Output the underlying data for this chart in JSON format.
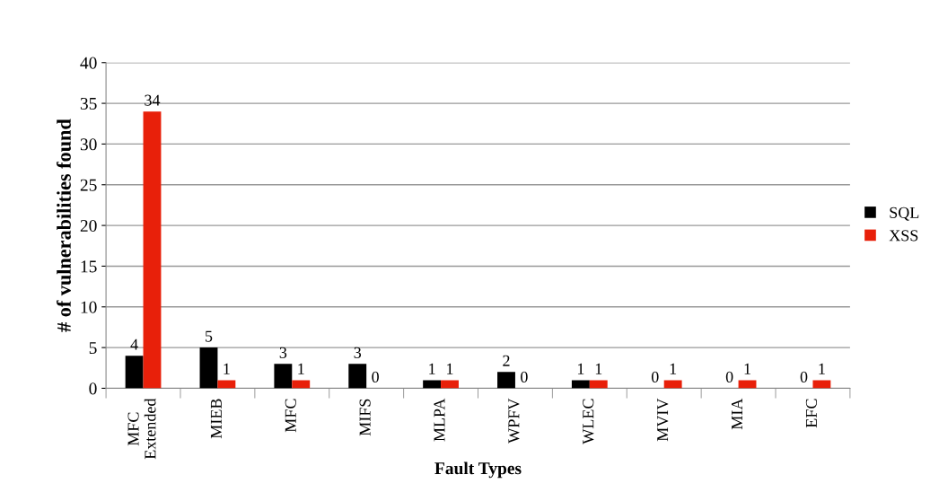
{
  "chart_data": {
    "type": "bar",
    "xlabel": "Fault Types",
    "ylabel": "# of vulnerabilities found",
    "categories": [
      "MFC\nExtended",
      "MIEB",
      "MFC",
      "MIFS",
      "MLPA",
      "WPFV",
      "WLEC",
      "MVIV",
      "MIA",
      "EFC"
    ],
    "series": [
      {
        "name": "SQL",
        "color": "#000000",
        "values": [
          4,
          5,
          3,
          3,
          1,
          2,
          1,
          0,
          0,
          0
        ]
      },
      {
        "name": "XSS",
        "color": "#e8200a",
        "values": [
          34,
          1,
          1,
          0,
          1,
          0,
          1,
          1,
          1,
          1
        ]
      }
    ],
    "ylim": [
      0,
      40
    ],
    "yticks": [
      0,
      5,
      10,
      15,
      20,
      25,
      30,
      35,
      40
    ],
    "grid": "y",
    "legend": "right",
    "data_labels": true
  }
}
